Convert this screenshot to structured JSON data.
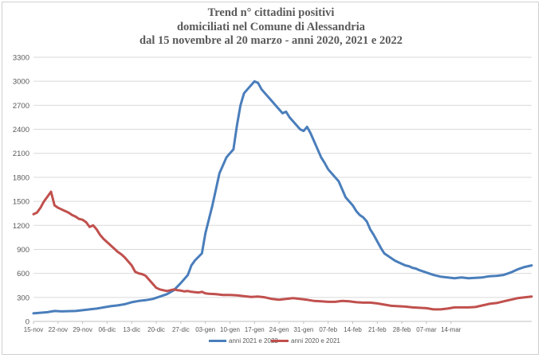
{
  "chart_data": {
    "type": "line",
    "title_lines": [
      "Trend n° cittadini positivi",
      "domiciliati nel Comune di Alessandria",
      "dal 15 novembre al 20 marzo - anni 2020, 2021 e 2022"
    ],
    "xlabel": "",
    "ylabel": "",
    "ylim": [
      0,
      3300
    ],
    "yticks": [
      0,
      300,
      600,
      900,
      1200,
      1500,
      1800,
      2100,
      2400,
      2700,
      3000,
      3300
    ],
    "ytick_labels": [
      "0",
      "300",
      "600",
      "900",
      "1200",
      "1500",
      "1800",
      "2100",
      "2400",
      "2700",
      "3000",
      "3300"
    ],
    "xtick_labels": [
      "15-nov",
      "22-nov",
      "29-nov",
      "06-dic",
      "13-dic",
      "20-dic",
      "27-dic",
      "03-gen",
      "10-gen",
      "17-gen",
      "24-gen",
      "31-gen",
      "07-feb",
      "14-feb",
      "21-feb",
      "28-feb",
      "07-mar",
      "14-mar"
    ],
    "grid": true,
    "legend_position": "bottom",
    "series": [
      {
        "name": "anni 2021 e 2022",
        "color": "#4a7ebb",
        "points": [
          [
            0,
            100
          ],
          [
            4,
            115
          ],
          [
            6,
            130
          ],
          [
            8,
            125
          ],
          [
            12,
            130
          ],
          [
            16,
            150
          ],
          [
            18,
            160
          ],
          [
            20,
            175
          ],
          [
            22,
            190
          ],
          [
            24,
            200
          ],
          [
            26,
            215
          ],
          [
            28,
            240
          ],
          [
            30,
            255
          ],
          [
            32,
            265
          ],
          [
            34,
            280
          ],
          [
            36,
            310
          ],
          [
            38,
            340
          ],
          [
            40,
            390
          ],
          [
            42,
            480
          ],
          [
            44,
            580
          ],
          [
            45,
            700
          ],
          [
            46,
            760
          ],
          [
            48,
            850
          ],
          [
            49,
            1100
          ],
          [
            51,
            1450
          ],
          [
            53,
            1850
          ],
          [
            55,
            2050
          ],
          [
            56,
            2100
          ],
          [
            57,
            2150
          ],
          [
            58,
            2450
          ],
          [
            59,
            2700
          ],
          [
            60,
            2850
          ],
          [
            61,
            2900
          ],
          [
            62,
            2950
          ],
          [
            63,
            3000
          ],
          [
            64,
            2980
          ],
          [
            65,
            2900
          ],
          [
            66,
            2850
          ],
          [
            67,
            2800
          ],
          [
            68,
            2750
          ],
          [
            69,
            2700
          ],
          [
            70,
            2650
          ],
          [
            71,
            2600
          ],
          [
            72,
            2620
          ],
          [
            73,
            2550
          ],
          [
            74,
            2500
          ],
          [
            75,
            2450
          ],
          [
            76,
            2400
          ],
          [
            77,
            2380
          ],
          [
            78,
            2430
          ],
          [
            79,
            2350
          ],
          [
            80,
            2250
          ],
          [
            81,
            2150
          ],
          [
            82,
            2050
          ],
          [
            83,
            1980
          ],
          [
            84,
            1900
          ],
          [
            85,
            1850
          ],
          [
            86,
            1800
          ],
          [
            87,
            1750
          ],
          [
            88,
            1650
          ],
          [
            89,
            1550
          ],
          [
            90,
            1500
          ],
          [
            91,
            1450
          ],
          [
            92,
            1380
          ],
          [
            93,
            1330
          ],
          [
            94,
            1300
          ],
          [
            95,
            1250
          ],
          [
            96,
            1150
          ],
          [
            97,
            1080
          ],
          [
            98,
            1000
          ],
          [
            99,
            920
          ],
          [
            100,
            850
          ],
          [
            101,
            820
          ],
          [
            102,
            790
          ],
          [
            103,
            760
          ],
          [
            104,
            740
          ],
          [
            105,
            720
          ],
          [
            106,
            700
          ],
          [
            107,
            690
          ],
          [
            108,
            670
          ],
          [
            109,
            660
          ],
          [
            110,
            640
          ],
          [
            112,
            610
          ],
          [
            114,
            580
          ],
          [
            116,
            560
          ],
          [
            118,
            550
          ],
          [
            120,
            540
          ],
          [
            122,
            550
          ],
          [
            124,
            540
          ],
          [
            126,
            545
          ],
          [
            128,
            550
          ],
          [
            130,
            565
          ],
          [
            132,
            570
          ],
          [
            134,
            580
          ],
          [
            136,
            610
          ],
          [
            138,
            650
          ],
          [
            140,
            680
          ],
          [
            142,
            700
          ]
        ]
      },
      {
        "name": "anni 2020 e 2021",
        "color": "#c0504d",
        "points": [
          [
            0,
            1340
          ],
          [
            1,
            1360
          ],
          [
            2,
            1420
          ],
          [
            3,
            1500
          ],
          [
            4,
            1560
          ],
          [
            5,
            1620
          ],
          [
            6,
            1450
          ],
          [
            7,
            1420
          ],
          [
            8,
            1400
          ],
          [
            9,
            1380
          ],
          [
            10,
            1360
          ],
          [
            11,
            1330
          ],
          [
            12,
            1310
          ],
          [
            13,
            1280
          ],
          [
            14,
            1270
          ],
          [
            15,
            1240
          ],
          [
            16,
            1180
          ],
          [
            17,
            1200
          ],
          [
            18,
            1150
          ],
          [
            19,
            1080
          ],
          [
            20,
            1030
          ],
          [
            21,
            990
          ],
          [
            22,
            950
          ],
          [
            23,
            910
          ],
          [
            24,
            870
          ],
          [
            25,
            840
          ],
          [
            26,
            800
          ],
          [
            27,
            750
          ],
          [
            28,
            700
          ],
          [
            29,
            620
          ],
          [
            30,
            600
          ],
          [
            31,
            590
          ],
          [
            32,
            570
          ],
          [
            33,
            520
          ],
          [
            34,
            470
          ],
          [
            35,
            420
          ],
          [
            36,
            400
          ],
          [
            37,
            390
          ],
          [
            38,
            380
          ],
          [
            39,
            390
          ],
          [
            40,
            400
          ],
          [
            41,
            390
          ],
          [
            42,
            385
          ],
          [
            43,
            375
          ],
          [
            44,
            380
          ],
          [
            45,
            370
          ],
          [
            46,
            365
          ],
          [
            47,
            360
          ],
          [
            48,
            370
          ],
          [
            49,
            350
          ],
          [
            50,
            345
          ],
          [
            52,
            340
          ],
          [
            54,
            330
          ],
          [
            56,
            330
          ],
          [
            58,
            325
          ],
          [
            60,
            315
          ],
          [
            62,
            305
          ],
          [
            64,
            310
          ],
          [
            66,
            300
          ],
          [
            68,
            280
          ],
          [
            70,
            270
          ],
          [
            72,
            280
          ],
          [
            74,
            290
          ],
          [
            76,
            280
          ],
          [
            78,
            270
          ],
          [
            80,
            255
          ],
          [
            82,
            250
          ],
          [
            84,
            245
          ],
          [
            86,
            245
          ],
          [
            88,
            255
          ],
          [
            90,
            250
          ],
          [
            92,
            240
          ],
          [
            94,
            235
          ],
          [
            96,
            235
          ],
          [
            98,
            225
          ],
          [
            100,
            210
          ],
          [
            102,
            195
          ],
          [
            104,
            190
          ],
          [
            106,
            185
          ],
          [
            108,
            175
          ],
          [
            110,
            170
          ],
          [
            112,
            165
          ],
          [
            114,
            150
          ],
          [
            116,
            150
          ],
          [
            118,
            160
          ],
          [
            120,
            175
          ],
          [
            122,
            175
          ],
          [
            124,
            175
          ],
          [
            126,
            180
          ],
          [
            128,
            200
          ],
          [
            130,
            220
          ],
          [
            132,
            230
          ],
          [
            134,
            250
          ],
          [
            136,
            270
          ],
          [
            138,
            290
          ],
          [
            140,
            300
          ],
          [
            142,
            310
          ]
        ]
      }
    ]
  }
}
